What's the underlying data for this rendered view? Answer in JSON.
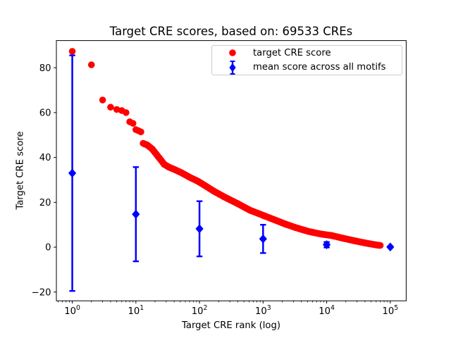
{
  "figure": {
    "background": "#ffffff",
    "text_color": "#000000"
  },
  "chart_data": {
    "type": "scatter",
    "title": "Target CRE scores, based on: 69533 CREs",
    "xlabel": "Target CRE rank (log)",
    "ylabel": "Target CRE score",
    "xscale": "log",
    "xlim": [
      0.5623,
      177828
    ],
    "ylim": [
      -23.9,
      92.1
    ],
    "xticks": [
      1,
      10,
      100,
      1000,
      10000,
      100000
    ],
    "yticks": [
      -20,
      0,
      20,
      40,
      60,
      80
    ],
    "grid": false,
    "legend_position": "upper right",
    "series": [
      {
        "name": "target CRE score",
        "marker": "circle",
        "color": "#ff0000",
        "dense_from_rank": 13,
        "points": [
          [
            1,
            87.3
          ],
          [
            2,
            81.3
          ],
          [
            3,
            65.6
          ],
          [
            4,
            62.4
          ],
          [
            5,
            61.4
          ],
          [
            6,
            60.9
          ],
          [
            7,
            60.0
          ],
          [
            8,
            55.9
          ],
          [
            9,
            55.2
          ],
          [
            10,
            52.4
          ],
          [
            11,
            51.9
          ],
          [
            12,
            51.4
          ],
          [
            13,
            46.3
          ],
          [
            15,
            45.6
          ],
          [
            18,
            43.8
          ],
          [
            23,
            40.0
          ],
          [
            28,
            36.9
          ],
          [
            33,
            35.7
          ],
          [
            40,
            34.7
          ],
          [
            52,
            33.2
          ],
          [
            72,
            31.0
          ],
          [
            93,
            29.5
          ],
          [
            120,
            27.6
          ],
          [
            170,
            24.9
          ],
          [
            250,
            22.3
          ],
          [
            400,
            19.4
          ],
          [
            620,
            16.5
          ],
          [
            1000,
            14.2
          ],
          [
            1550,
            12.1
          ],
          [
            2200,
            10.4
          ],
          [
            3200,
            8.8
          ],
          [
            5200,
            7.0
          ],
          [
            8000,
            5.9
          ],
          [
            12000,
            5.2
          ],
          [
            18000,
            4.0
          ],
          [
            27000,
            2.9
          ],
          [
            40000,
            1.9
          ],
          [
            55000,
            1.2
          ],
          [
            64000,
            0.9
          ],
          [
            69533,
            0.8
          ]
        ]
      },
      {
        "name": "mean score across all motifs",
        "marker": "diamond",
        "color": "#0000ff",
        "x": [
          1,
          10,
          100,
          1000,
          10000,
          100000
        ],
        "y": [
          33.0,
          14.7,
          8.2,
          3.7,
          1.1,
          0.1
        ],
        "yerr": [
          52.5,
          21.0,
          12.3,
          6.3,
          1.2,
          0.3
        ]
      }
    ]
  }
}
